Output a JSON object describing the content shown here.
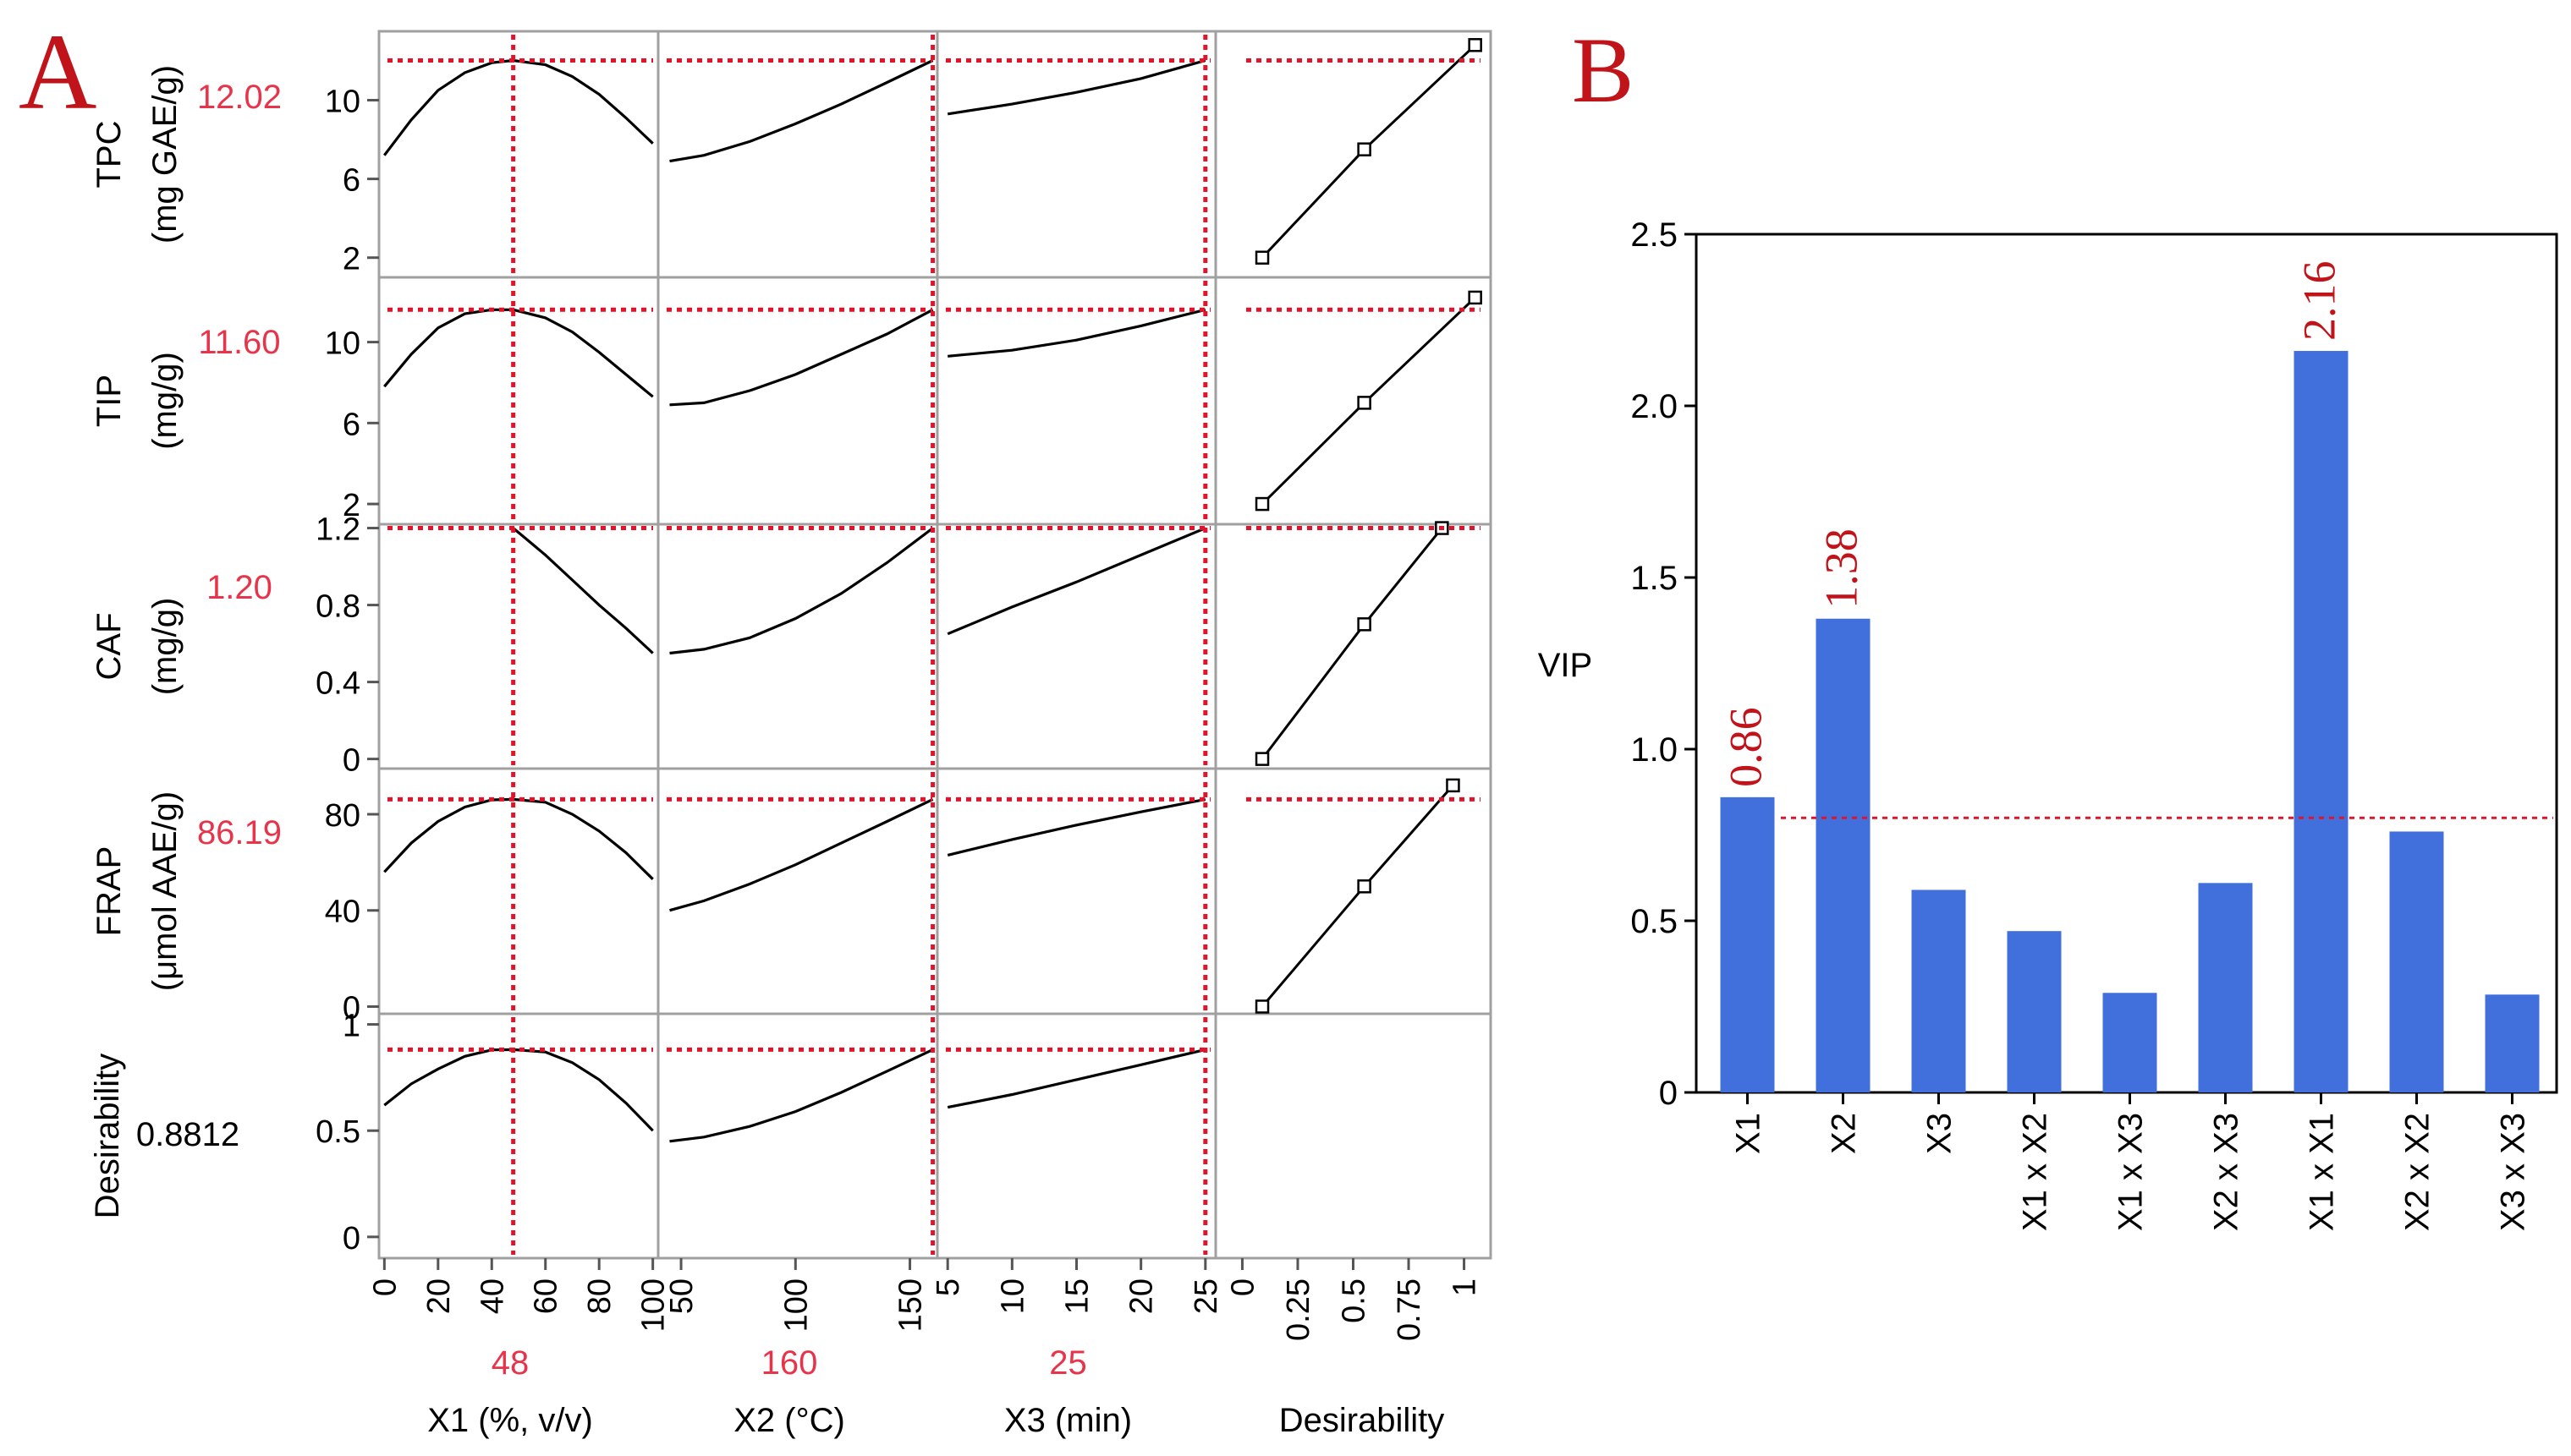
{
  "panel_a": {
    "label": "A",
    "rows": [
      {
        "name": "TPC",
        "unit": "(mg GAE/g)",
        "value": "12.02",
        "value_color": "#e8344a",
        "ticks": [
          "2",
          "6",
          "10"
        ],
        "range": [
          1.0,
          13.5
        ]
      },
      {
        "name": "TIP",
        "unit": "(mg/g)",
        "value": "11.60",
        "value_color": "#e8344a",
        "ticks": [
          "2",
          "6",
          "10"
        ],
        "range": [
          1.0,
          13.2
        ]
      },
      {
        "name": "CAF",
        "unit": "(mg/g)",
        "value": "1.20",
        "value_color": "#e8344a",
        "ticks": [
          "0",
          "0.4",
          "0.8",
          "1.2"
        ],
        "range": [
          -0.05,
          1.22
        ]
      },
      {
        "name": "FRAP",
        "unit": "(μmol AAE/g)",
        "value": "86.19",
        "value_color": "#e8344a",
        "ticks": [
          "0",
          "40",
          "80"
        ],
        "range": [
          -3,
          99
        ]
      },
      {
        "name": "Desirability",
        "unit": "",
        "value": "0.8812",
        "value_color": "#000000",
        "ticks": [
          "0",
          "0.5",
          "1"
        ],
        "range": [
          -0.1,
          1.05
        ]
      }
    ],
    "columns": [
      {
        "name": "X1 (%, v/v)",
        "setting": "48",
        "setting_color": "#e8344a",
        "ticks": [
          "0",
          "20",
          "40",
          "60",
          "80",
          "100"
        ],
        "range": [
          -2,
          102
        ]
      },
      {
        "name": "X2 (°C)",
        "setting": "160",
        "setting_color": "#e8344a",
        "ticks": [
          "50",
          "100",
          "150"
        ],
        "range": [
          40,
          162
        ]
      },
      {
        "name": "X3 (min)",
        "setting": "25",
        "setting_color": "#e8344a",
        "ticks": [
          "5",
          "10",
          "15",
          "20",
          "25"
        ],
        "range": [
          4.2,
          25.8
        ]
      },
      {
        "name": "Desirability",
        "setting": "",
        "setting_color": "#000000",
        "ticks": [
          "0",
          "0.25",
          "0.5",
          "0.75",
          "1"
        ],
        "range": [
          -0.12,
          1.12
        ]
      }
    ],
    "curves": {
      "x1": [
        0,
        10,
        20,
        30,
        40,
        48,
        60,
        70,
        80,
        90,
        100
      ],
      "x2": [
        45,
        60,
        80,
        100,
        120,
        140,
        160
      ],
      "x3": [
        5,
        10,
        15,
        20,
        25
      ],
      "rows": [
        {
          "x1": [
            7.2,
            9.0,
            10.5,
            11.4,
            11.9,
            12.02,
            11.8,
            11.2,
            10.3,
            9.1,
            7.8
          ],
          "x2": [
            6.9,
            7.2,
            7.9,
            8.8,
            9.8,
            10.9,
            12.02
          ],
          "x3": [
            9.3,
            9.8,
            10.4,
            11.1,
            12.02
          ]
        },
        {
          "x1": [
            7.8,
            9.4,
            10.7,
            11.4,
            11.6,
            11.6,
            11.2,
            10.5,
            9.5,
            8.4,
            7.3
          ],
          "x2": [
            6.9,
            7.0,
            7.6,
            8.4,
            9.4,
            10.4,
            11.6
          ],
          "x3": [
            9.3,
            9.6,
            10.1,
            10.8,
            11.6
          ]
        },
        {
          "x1": [
            null,
            null,
            null,
            null,
            null,
            1.2,
            1.06,
            0.93,
            0.8,
            0.68,
            0.55
          ],
          "x2": [
            0.55,
            0.57,
            0.63,
            0.73,
            0.86,
            1.02,
            1.2
          ],
          "x3": [
            0.65,
            0.79,
            0.92,
            1.06,
            1.2
          ]
        },
        {
          "x1": [
            56,
            68,
            77,
            83,
            86,
            86.19,
            85,
            80,
            73,
            64,
            53
          ],
          "x2": [
            40,
            44,
            51,
            59,
            68,
            77,
            86.19
          ],
          "x3": [
            63,
            69.5,
            75.5,
            81,
            86.19
          ]
        },
        {
          "x1": [
            0.62,
            0.72,
            0.79,
            0.85,
            0.88,
            0.8812,
            0.87,
            0.82,
            0.74,
            0.63,
            0.5
          ],
          "x2": [
            0.45,
            0.47,
            0.52,
            0.59,
            0.68,
            0.78,
            0.8812
          ],
          "x3": [
            0.61,
            0.67,
            0.74,
            0.81,
            0.8812
          ]
        }
      ],
      "desirability": [
        {
          "d": [
            0.09,
            0.55,
            1.05
          ],
          "y": [
            2,
            7.5,
            12.8
          ]
        },
        {
          "d": [
            0.09,
            0.55,
            1.05
          ],
          "y": [
            2,
            7,
            12.2
          ]
        },
        {
          "d": [
            0.09,
            0.55,
            0.9
          ],
          "y": [
            0,
            0.7,
            1.2
          ]
        },
        {
          "d": [
            0.09,
            0.55,
            0.95
          ],
          "y": [
            0,
            50,
            92
          ]
        }
      ]
    }
  },
  "chart_data": {
    "type": "bar",
    "panel_label": "B",
    "title": "",
    "xlabel": "",
    "ylabel": "VIP",
    "categories": [
      "X1",
      "X2",
      "X3",
      "X1 x X2",
      "X1 x X3",
      "X2 x X3",
      "X1 x X1",
      "X2 x X2",
      "X3 x X3"
    ],
    "values": [
      0.86,
      1.38,
      0.59,
      0.47,
      0.29,
      0.61,
      2.16,
      0.76,
      0.285
    ],
    "value_labels": [
      "0.86",
      "1.38",
      "",
      "",
      "",
      "",
      "2.16",
      "",
      ""
    ],
    "ylim": [
      0,
      2.5
    ],
    "yticks": [
      "0",
      "0.5",
      "1.0",
      "1.5",
      "2.0",
      "2.5"
    ],
    "threshold": 0.8,
    "colors": {
      "bar": "#4170dc",
      "label": "#c0141a",
      "threshold": "#e0142a",
      "panel_label": "#c0141a"
    }
  }
}
